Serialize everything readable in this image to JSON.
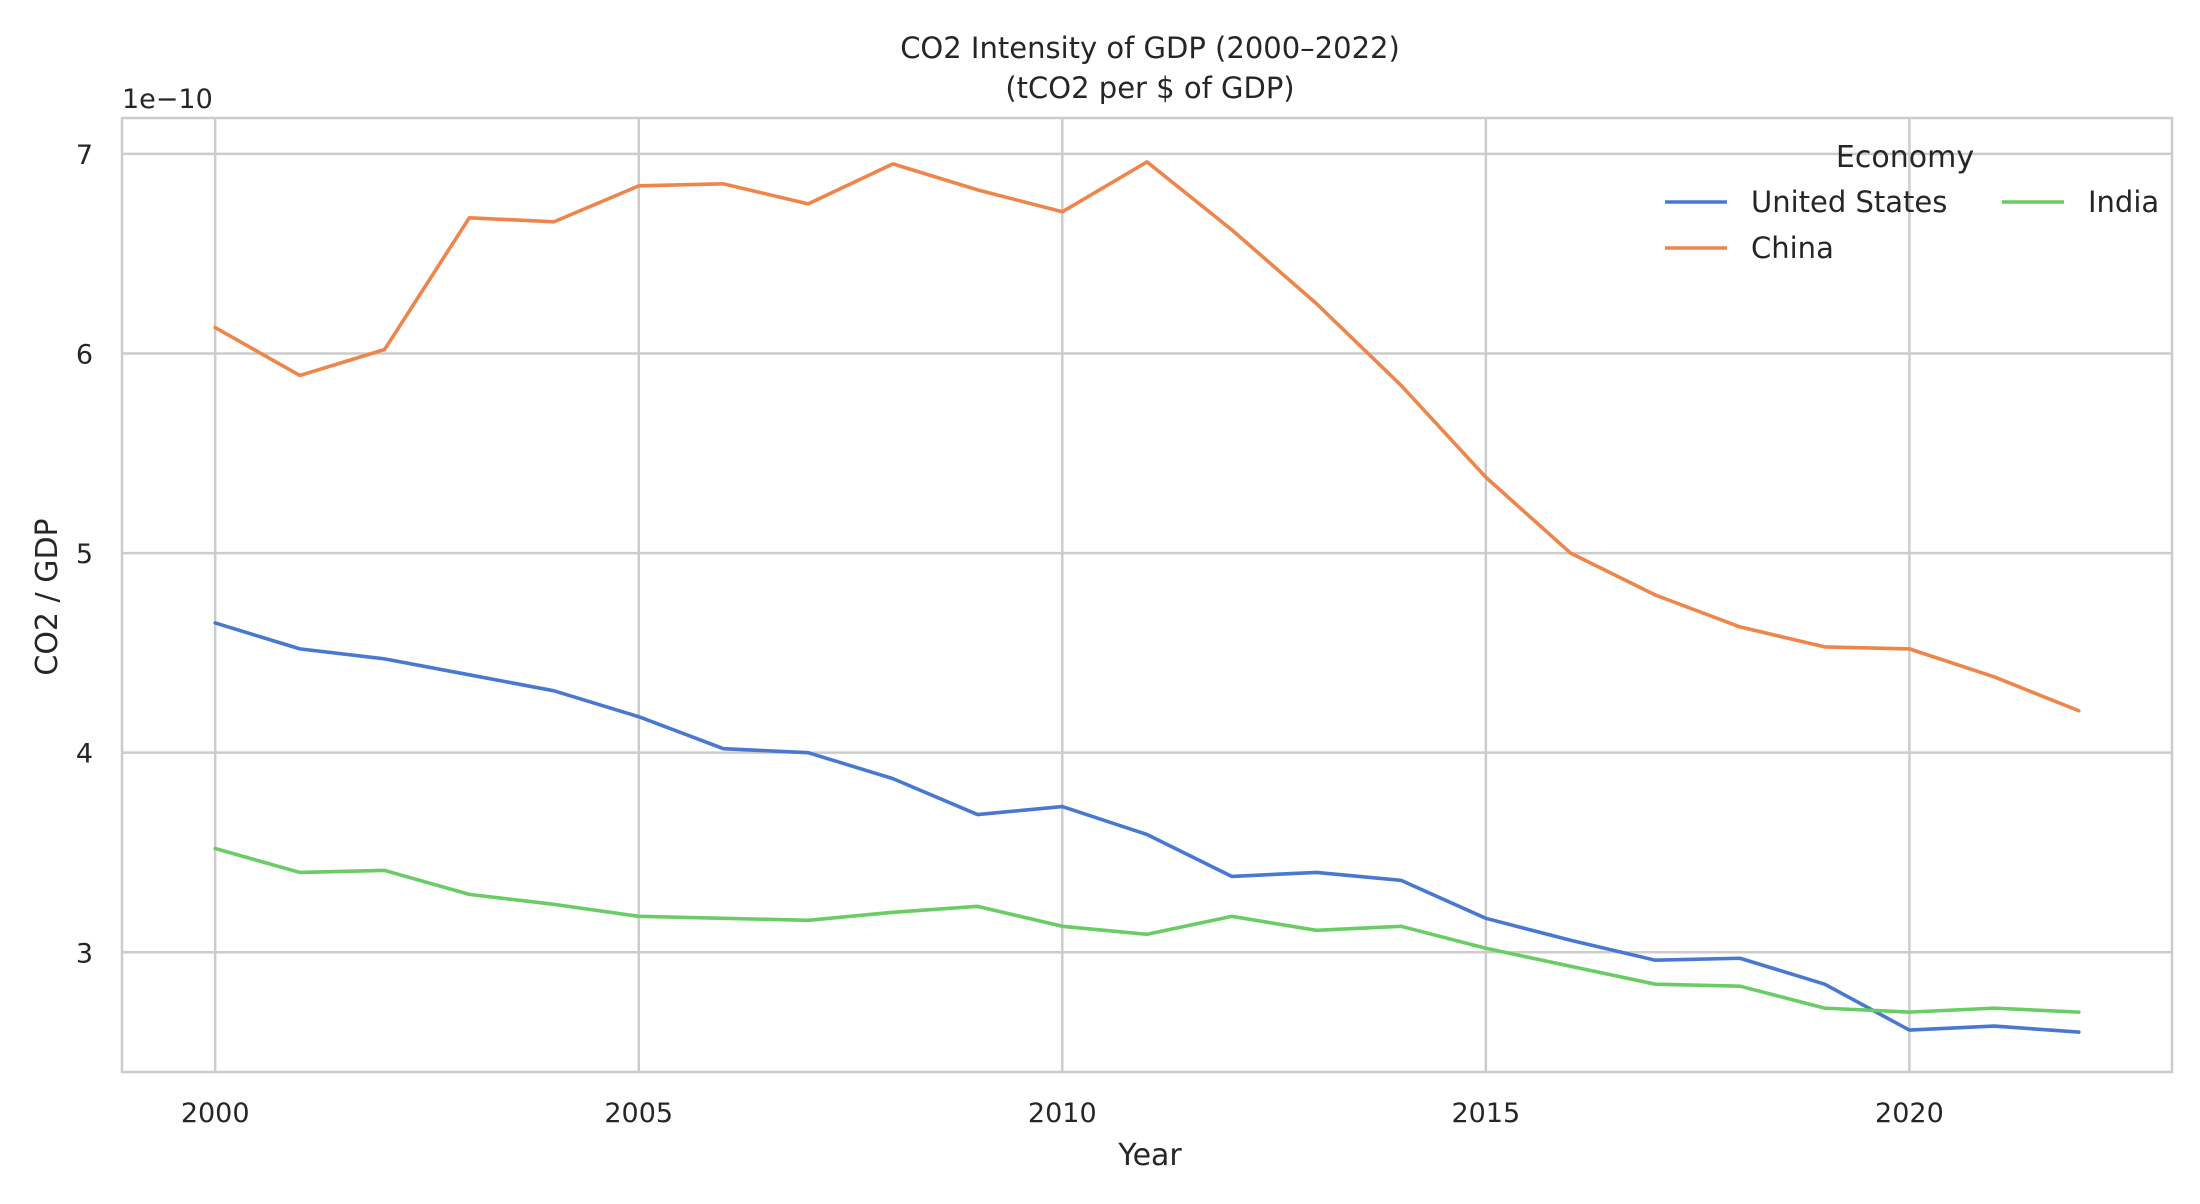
{
  "chart_data": {
    "type": "line",
    "title": "CO2 Intensity of GDP (2000–2022)",
    "subtitle": "(tCO2 per $ of GDP)",
    "xlabel": "Year",
    "ylabel": "CO2 / GDP",
    "y_offset_label": "1e−10",
    "legend_title": "Economy",
    "legend_placement": "top-right",
    "grid": true,
    "xlim": [
      1998.9,
      2023.1
    ],
    "ylim": [
      2.4,
      7.18
    ],
    "x_ticks": [
      2000,
      2005,
      2010,
      2015,
      2020
    ],
    "y_ticks": [
      3,
      4,
      5,
      6,
      7
    ],
    "x": [
      2000,
      2001,
      2002,
      2003,
      2004,
      2005,
      2006,
      2007,
      2008,
      2009,
      2010,
      2011,
      2012,
      2013,
      2014,
      2015,
      2016,
      2017,
      2018,
      2019,
      2020,
      2021,
      2022
    ],
    "series": [
      {
        "name": "United States",
        "color": "#4878d0",
        "values": [
          4.65,
          4.52,
          4.47,
          4.39,
          4.31,
          4.18,
          4.02,
          4.0,
          3.87,
          3.69,
          3.73,
          3.59,
          3.38,
          3.4,
          3.36,
          3.17,
          3.06,
          2.96,
          2.97,
          2.84,
          2.61,
          2.63,
          2.6
        ]
      },
      {
        "name": "China",
        "color": "#ee854a",
        "values": [
          6.13,
          5.89,
          6.02,
          6.68,
          6.66,
          6.84,
          6.85,
          6.75,
          6.95,
          6.82,
          6.71,
          6.96,
          6.62,
          6.25,
          5.84,
          5.38,
          5.0,
          4.79,
          4.63,
          4.53,
          4.52,
          4.38,
          4.21
        ]
      },
      {
        "name": "India",
        "color": "#6acc64",
        "values": [
          3.52,
          3.4,
          3.41,
          3.29,
          3.24,
          3.18,
          3.17,
          3.16,
          3.2,
          3.23,
          3.13,
          3.09,
          3.18,
          3.11,
          3.13,
          3.02,
          2.93,
          2.84,
          2.83,
          2.72,
          2.7,
          2.72,
          2.7
        ]
      }
    ]
  }
}
